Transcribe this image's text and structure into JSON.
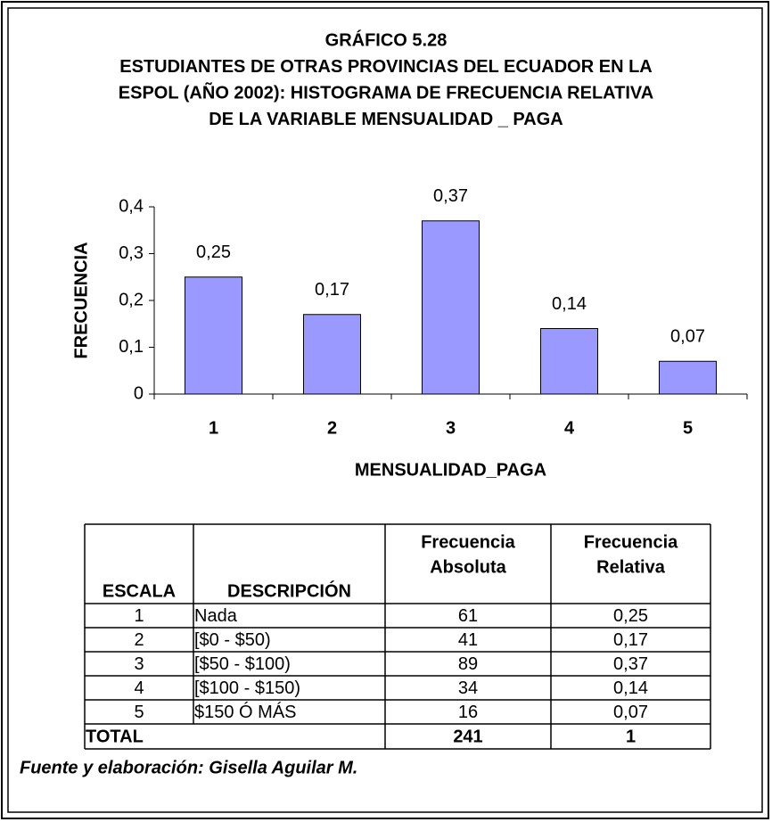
{
  "chart_data": {
    "type": "bar",
    "title": [
      "GRÁFICO 5.28",
      "ESTUDIANTES DE OTRAS PROVINCIAS DEL ECUADOR EN LA",
      "ESPOL (AÑO 2002): HISTOGRAMA DE FRECUENCIA RELATIVA",
      "DE LA VARIABLE MENSUALIDAD _ PAGA"
    ],
    "x_label": "MENSUALIDAD_PAGA",
    "y_label": "FRECUENCIA",
    "categories": [
      "1",
      "2",
      "3",
      "4",
      "5"
    ],
    "values": [
      0.25,
      0.17,
      0.37,
      0.14,
      0.07
    ],
    "value_labels": [
      "0,25",
      "0,17",
      "0,37",
      "0,14",
      "0,07"
    ],
    "color": "#9999ff",
    "ylim": [
      0,
      0.4
    ],
    "yticks": [
      0,
      {
        "value": 0.1,
        "label": "0,1"
      },
      {
        "value": 0.2,
        "label": "0,2"
      },
      {
        "value": 0.3,
        "label": "0,3"
      },
      {
        "value": 0.4,
        "label": "0,4"
      }
    ],
    "grid": false
  },
  "table": {
    "header": [
      "ESCALA",
      "DESCRIPCIÓN",
      [
        "Frecuencia",
        "Absoluta"
      ],
      [
        "Frecuencia",
        "Relativa"
      ]
    ],
    "rows": [
      [
        "1",
        "Nada",
        "61",
        "0,25"
      ],
      [
        "2",
        "[$0 - $50)",
        "41",
        "0,17"
      ],
      [
        "3",
        "[$50 - $100)",
        "89",
        "0,37"
      ],
      [
        "4",
        "[$100 - $150)",
        "34",
        "0,14"
      ],
      [
        "5",
        "$150 Ó MÁS",
        "16",
        "0,07"
      ]
    ],
    "total": [
      "TOTAL",
      "241",
      "1"
    ]
  },
  "source": "Fuente y elaboración: Gisella Aguilar M."
}
